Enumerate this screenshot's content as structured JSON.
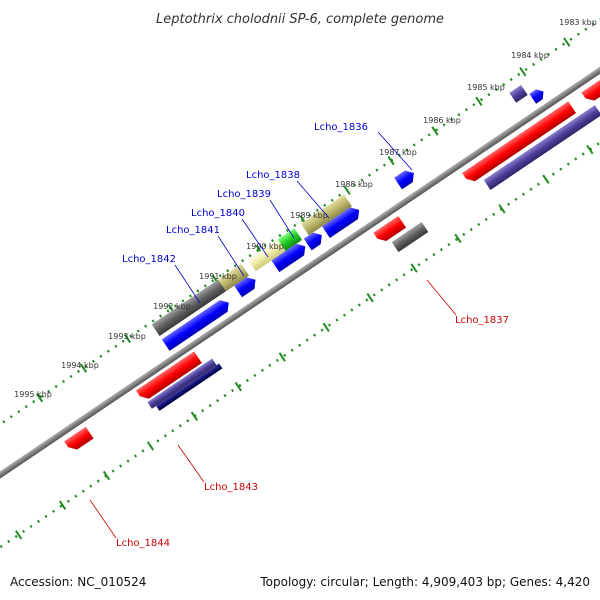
{
  "title": "Leptothrix cholodnii SP-6, complete genome",
  "footer": {
    "accession": "Accession: NC_010524",
    "topology": "Topology: circular; Length: 4,909,403 bp; Genes: 4,420"
  },
  "colors": {
    "forward_label": "#0000cc",
    "reverse_label": "#cc0000",
    "scale_tick": "#228b22",
    "backbone": "#808080"
  },
  "kbp_labels": [
    "1983 kbp",
    "1984 kbp",
    "1985 kbp",
    "1986 kbp",
    "1987 kbp",
    "1988 kbp",
    "1989 kbp",
    "1990 kbp",
    "1991 kbp",
    "1992 kbp",
    "1993 kbp",
    "1994 kbp",
    "1995 kbp"
  ],
  "gene_labels": {
    "lcho_1836": "Lcho_1836",
    "lcho_1837": "Lcho_1837",
    "lcho_1838": "Lcho_1838",
    "lcho_1839": "Lcho_1839",
    "lcho_1840": "Lcho_1840",
    "lcho_1841": "Lcho_1841",
    "lcho_1842": "Lcho_1842",
    "lcho_1843": "Lcho_1843",
    "lcho_1844": "Lcho_1844"
  }
}
